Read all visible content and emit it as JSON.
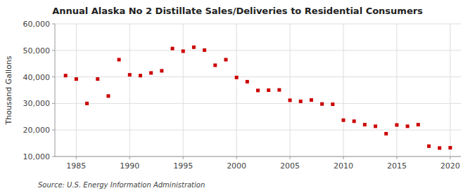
{
  "chart_data": {
    "type": "scatter",
    "title": "Annual Alaska No 2 Distillate Sales/Deliveries to Residential Consumers",
    "y_label": "Thousand Gallons",
    "source": "Source: U.S. Energy Information Administration",
    "x": [
      1984,
      1985,
      1986,
      1987,
      1988,
      1989,
      1990,
      1991,
      1992,
      1993,
      1994,
      1995,
      1996,
      1997,
      1998,
      1999,
      2000,
      2001,
      2002,
      2003,
      2004,
      2005,
      2006,
      2007,
      2008,
      2009,
      2010,
      2011,
      2012,
      2013,
      2014,
      2015,
      2016,
      2017,
      2018,
      2019,
      2020
    ],
    "values": [
      40500,
      39200,
      30000,
      39200,
      32800,
      46500,
      40800,
      40500,
      41500,
      42300,
      50700,
      49700,
      51200,
      50100,
      44400,
      46500,
      39800,
      38200,
      34900,
      35000,
      35100,
      31200,
      30800,
      31300,
      29800,
      29700,
      23700,
      23300,
      22000,
      21400,
      18600,
      21900,
      21400,
      22000,
      13900,
      13200,
      13300
    ],
    "color": "#cc0000",
    "marker": "square",
    "xlim": [
      1983,
      2021
    ],
    "ylim": [
      10000,
      60000
    ],
    "xticks": [
      1985,
      1990,
      1995,
      2000,
      2005,
      2010,
      2015,
      2020
    ],
    "yticks": [
      {
        "value": 10000,
        "label": "10,000"
      },
      {
        "value": 20000,
        "label": "20,000"
      },
      {
        "value": 30000,
        "label": "30,000"
      },
      {
        "value": 40000,
        "label": "40,000"
      },
      {
        "value": 50000,
        "label": "50,000"
      },
      {
        "value": 60000,
        "label": "60,000"
      }
    ],
    "grid": true
  }
}
